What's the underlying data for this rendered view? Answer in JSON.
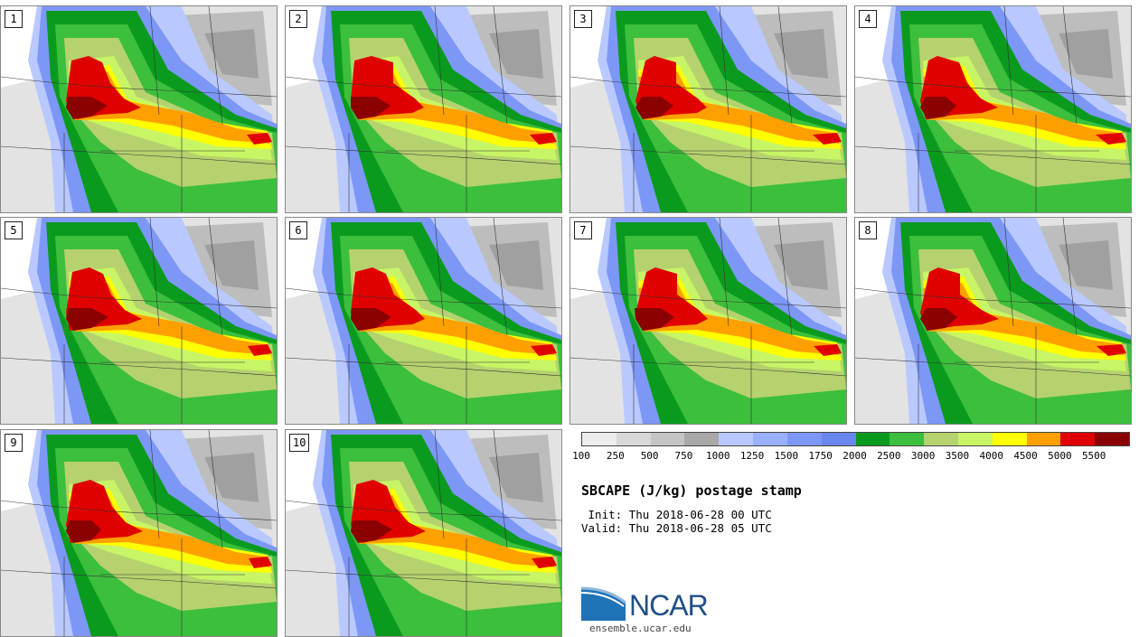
{
  "panels": [
    {
      "label": "1"
    },
    {
      "label": "2"
    },
    {
      "label": "3"
    },
    {
      "label": "4"
    },
    {
      "label": "5"
    },
    {
      "label": "6"
    },
    {
      "label": "7"
    },
    {
      "label": "8"
    },
    {
      "label": "9"
    },
    {
      "label": "10"
    }
  ],
  "colorbar": {
    "labels": [
      "100",
      "250",
      "500",
      "750",
      "1000",
      "1250",
      "1500",
      "1750",
      "2000",
      "2500",
      "3000",
      "3500",
      "4000",
      "4500",
      "5000",
      "5500"
    ],
    "colors": [
      "#ececec",
      "#d8d8d8",
      "#c4c4c4",
      "#a8a8a8",
      "#b9c9ff",
      "#98b0ff",
      "#7d97f7",
      "#6a86ef",
      "#0a9b1e",
      "#3cbf3c",
      "#b5d26e",
      "#c7f565",
      "#ffff00",
      "#ffa000",
      "#e00000",
      "#8b0000"
    ]
  },
  "map_colors": {
    "land_bg": "#ffffff",
    "light_gray": "#e3e3e3",
    "gray": "#bdbdbd",
    "dark_gray": "#a0a0a0",
    "blue_light": "#b9c9ff",
    "blue": "#7d97f7",
    "green_dark": "#0a9b1e",
    "green": "#3cbf3c",
    "green_light": "#b5d26e",
    "lime": "#c7f565",
    "yellow": "#ffff00",
    "orange": "#ffa000",
    "red": "#e00000",
    "dark_red": "#8b0000"
  },
  "text": {
    "title": "SBCAPE (J/kg) postage stamp",
    "init": " Init: Thu 2018-06-28 00 UTC",
    "valid": "Valid: Thu 2018-06-28 05 UTC",
    "logo": "NCAR",
    "url": "ensemble.ucar.edu"
  }
}
